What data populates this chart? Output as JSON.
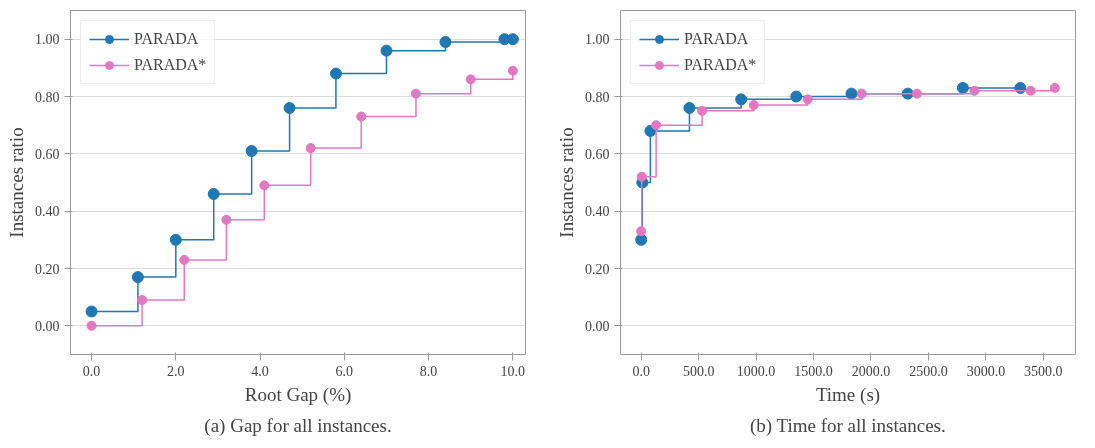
{
  "chart_data": [
    {
      "type": "step",
      "xlabel": "Root Gap (%)",
      "ylabel": "Instances ratio",
      "annotations": [
        "(a) Gap for all instances."
      ],
      "xlim": [
        -0.5,
        10.3
      ],
      "ylim": [
        -0.1,
        1.1
      ],
      "xticks": [
        {
          "value": 0,
          "label": "0.0"
        },
        {
          "value": 2,
          "label": "2.0"
        },
        {
          "value": 4,
          "label": "4.0"
        },
        {
          "value": 6,
          "label": "6.0"
        },
        {
          "value": 8,
          "label": "8.0"
        },
        {
          "value": 10,
          "label": "10.0"
        }
      ],
      "yticks": [
        {
          "value": 0,
          "label": "0.00"
        },
        {
          "value": 0.2,
          "label": "0.20"
        },
        {
          "value": 0.4,
          "label": "0.40"
        },
        {
          "value": 0.6,
          "label": "0.60"
        },
        {
          "value": 0.8,
          "label": "0.80"
        },
        {
          "value": 1,
          "label": "1.00"
        }
      ],
      "grid": "y",
      "legend": "top left",
      "marker": "circle",
      "series": [
        {
          "name": "PARADA",
          "color": "#1f77b4",
          "x": [
            0,
            1.1,
            2.0,
            2.9,
            3.8,
            4.7,
            5.8,
            7.0,
            8.4,
            9.8,
            10
          ],
          "values": [
            0.05,
            0.17,
            0.3,
            0.46,
            0.61,
            0.76,
            0.88,
            0.96,
            0.99,
            1.0,
            1.0
          ]
        },
        {
          "name": "PARADA*",
          "color": "#e377c2",
          "x": [
            0,
            1.2,
            2.2,
            3.2,
            4.1,
            5.2,
            6.4,
            7.7,
            9.0,
            10
          ],
          "values": [
            0.0,
            0.09,
            0.23,
            0.37,
            0.49,
            0.62,
            0.73,
            0.81,
            0.86,
            0.89
          ]
        }
      ]
    },
    {
      "type": "step",
      "xlabel": "Time (s)",
      "ylabel": "Instances ratio",
      "annotations": [
        "(b) Time for all instances."
      ],
      "xlim": [
        -180,
        3780
      ],
      "ylim": [
        -0.1,
        1.1
      ],
      "xticks": [
        {
          "value": 0,
          "label": "0.0"
        },
        {
          "value": 500,
          "label": "500.0"
        },
        {
          "value": 1000,
          "label": "1000.0"
        },
        {
          "value": 1500,
          "label": "1500.0"
        },
        {
          "value": 2000,
          "label": "2000.0"
        },
        {
          "value": 2500,
          "label": "2500.0"
        },
        {
          "value": 3000,
          "label": "3000.0"
        },
        {
          "value": 3500,
          "label": "3500.0"
        }
      ],
      "yticks": [
        {
          "value": 0,
          "label": "0.00"
        },
        {
          "value": 0.2,
          "label": "0.20"
        },
        {
          "value": 0.4,
          "label": "0.40"
        },
        {
          "value": 0.6,
          "label": "0.60"
        },
        {
          "value": 0.8,
          "label": "0.80"
        },
        {
          "value": 1,
          "label": "1.00"
        }
      ],
      "grid": "y",
      "legend": "top left",
      "marker": "circle",
      "series": [
        {
          "name": "PARADA",
          "color": "#1f77b4",
          "x": [
            0,
            10,
            80,
            420,
            870,
            1350,
            1830,
            2320,
            2800,
            3300
          ],
          "values": [
            0.3,
            0.5,
            0.68,
            0.76,
            0.79,
            0.8,
            0.81,
            0.81,
            0.83,
            0.83
          ]
        },
        {
          "name": "PARADA*",
          "color": "#e377c2",
          "x": [
            0,
            5,
            130,
            530,
            980,
            1450,
            1920,
            2400,
            2900,
            3390,
            3600
          ],
          "values": [
            0.33,
            0.52,
            0.7,
            0.75,
            0.77,
            0.79,
            0.81,
            0.81,
            0.82,
            0.82,
            0.83
          ]
        }
      ]
    }
  ]
}
